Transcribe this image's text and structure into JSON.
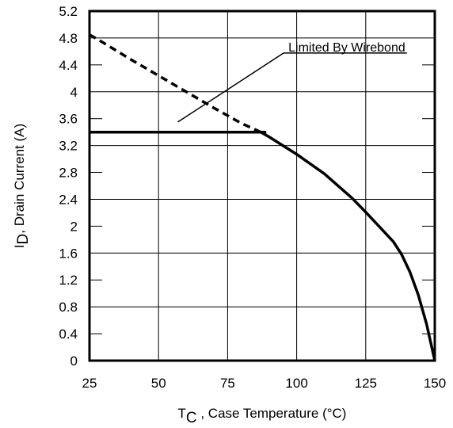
{
  "chart_data": {
    "type": "line",
    "title": "",
    "xlabel": {
      "main": "T",
      "sub": "C",
      "rest": " , Case Temperature (°C)"
    },
    "ylabel": {
      "main": "I",
      "sub": "D",
      "rest": ",  Drain Current (A)"
    },
    "xlim": [
      25,
      150
    ],
    "ylim": [
      0,
      5.2
    ],
    "x_ticks": [
      25,
      50,
      75,
      100,
      125,
      150
    ],
    "y_ticks": [
      0,
      0.4,
      0.8,
      1.2,
      1.6,
      2,
      2.4,
      2.8,
      3.2,
      3.6,
      4,
      4.4,
      4.8,
      5.2
    ],
    "grid": true,
    "series": [
      {
        "style": "dashed",
        "x": [
          25,
          30,
          40,
          50,
          60,
          70,
          80,
          87
        ],
        "y": [
          4.85,
          4.73,
          4.48,
          4.24,
          4.0,
          3.76,
          3.53,
          3.4
        ]
      },
      {
        "style": "solid",
        "x": [
          25,
          89
        ],
        "y": [
          3.4,
          3.4
        ]
      },
      {
        "style": "solid",
        "x": [
          87,
          90,
          100,
          110,
          120,
          125,
          130,
          135,
          138,
          141,
          144,
          147,
          150
        ],
        "y": [
          3.4,
          3.33,
          3.07,
          2.78,
          2.42,
          2.21,
          1.99,
          1.77,
          1.58,
          1.32,
          0.98,
          0.55,
          0.0
        ]
      }
    ],
    "annotations": [
      {
        "text": "Limited By Wirebond",
        "x": 97,
        "y": 4.6,
        "pointer_to": [
          57,
          3.55
        ]
      }
    ]
  }
}
